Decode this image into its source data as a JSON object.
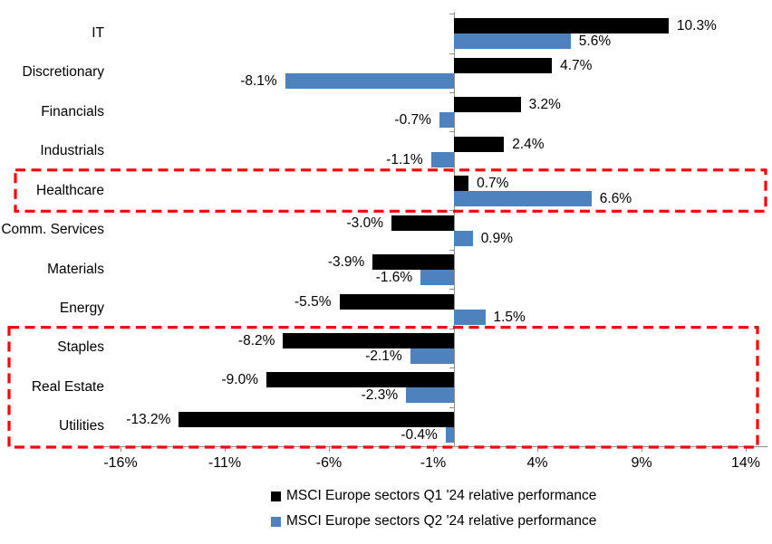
{
  "chart_data": {
    "type": "bar",
    "orientation": "horizontal",
    "title": "",
    "categories": [
      "IT",
      "Discretionary",
      "Financials",
      "Industrials",
      "Healthcare",
      "Comm. Services",
      "Materials",
      "Energy",
      "Staples",
      "Real Estate",
      "Utilities"
    ],
    "series": [
      {
        "name": "MSCI Europe sectors Q1 '24 relative performance",
        "color": "#000000",
        "values": [
          10.3,
          4.7,
          3.2,
          2.4,
          0.7,
          -3.0,
          -3.9,
          -5.5,
          -8.2,
          -9.0,
          -13.2
        ]
      },
      {
        "name": "MSCI Europe sectors Q2 '24 relative performance",
        "color": "#4e82be",
        "values": [
          5.6,
          -8.1,
          -0.7,
          -1.1,
          6.6,
          0.9,
          -1.6,
          1.5,
          -2.1,
          -2.3,
          -0.4
        ]
      }
    ],
    "value_suffix": "%",
    "value_decimals": 1,
    "x_ticks": [
      {
        "value": -16,
        "label": "-16%"
      },
      {
        "value": -11,
        "label": "-11%"
      },
      {
        "value": -6,
        "label": "-6%"
      },
      {
        "value": -1,
        "label": "-1%"
      },
      {
        "value": 4,
        "label": "4%"
      },
      {
        "value": 9,
        "label": "9%"
      },
      {
        "value": 14,
        "label": "14%"
      }
    ],
    "xlim": [
      -17,
      15
    ],
    "grid": false,
    "axis_color": "#8e8e8e",
    "background": "#ffffff",
    "legend_position": "bottom",
    "highlights": [
      {
        "categories": [
          "Healthcare"
        ],
        "color": "#ff0000",
        "style": "dashed"
      },
      {
        "categories": [
          "Staples",
          "Real Estate",
          "Utilities"
        ],
        "color": "#ff0000",
        "style": "dashed"
      }
    ]
  }
}
